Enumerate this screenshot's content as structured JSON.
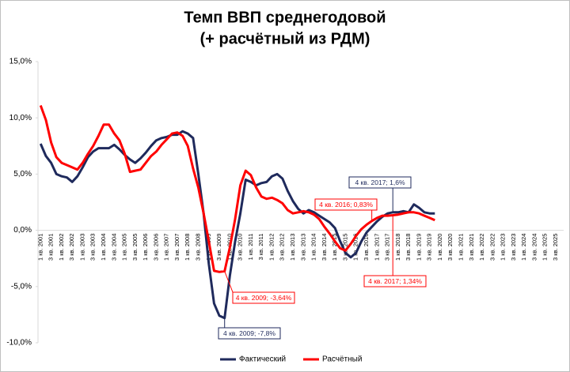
{
  "chart_data": {
    "type": "line",
    "title": "Темп ВВП среднегодовой",
    "subtitle": "(+ расчётный из РДМ)",
    "categories": [
      "1 кв. 2001",
      null,
      "3 кв. 2001",
      null,
      "1 кв. 2002",
      null,
      "3 кв. 2002",
      null,
      "1 кв. 2003",
      null,
      "3 кв. 2003",
      null,
      "1 кв. 2004",
      null,
      "3 кв. 2004",
      null,
      "1 кв. 2005",
      null,
      "3 кв. 2005",
      null,
      "1 кв. 2006",
      null,
      "3 кв. 2006",
      null,
      "1 кв. 2007",
      null,
      "3 кв. 2007",
      null,
      "1 кв. 2008",
      null,
      "3 кв. 2008",
      null,
      "1 кв. 2009",
      null,
      "3 кв. 2009",
      null,
      "1 кв. 2010",
      null,
      "3 кв. 2010",
      null,
      "1 кв. 2011",
      null,
      "3 кв. 2011",
      null,
      "1 кв. 2012",
      null,
      "3 кв. 2012",
      null,
      "1 кв. 2013",
      null,
      "3 кв. 2013",
      null,
      "1 кв. 2014",
      null,
      "3 кв. 2014",
      null,
      "1 кв. 2015",
      null,
      "3 кв. 2015",
      null,
      "1 кв. 2016",
      null,
      "3 кв. 2016",
      null,
      "1 кв. 2017",
      null,
      "3 кв. 2017",
      null,
      "1 кв. 2018",
      null,
      "3 кв. 2018",
      null,
      "1 кв. 2019",
      null,
      "3 кв. 2019",
      null,
      "1 кв. 2020",
      null,
      "3 кв. 2020",
      null,
      "1 кв. 2021",
      null,
      "3 кв. 2021",
      null,
      "1 кв. 2022",
      null,
      "3 кв. 2022",
      null,
      "1 кв. 2023",
      null,
      "3 кв. 2023",
      null,
      "1 кв. 2024",
      null,
      "3 кв. 2024",
      null,
      "1 кв. 2025",
      null,
      "3 кв. 2025",
      null
    ],
    "series": [
      {
        "name": "Фактический",
        "color": "#1f2a5c",
        "values": [
          7.7,
          6.6,
          6.0,
          5.0,
          4.8,
          4.7,
          4.3,
          4.8,
          5.6,
          6.5,
          7.0,
          7.3,
          7.3,
          7.3,
          7.6,
          7.2,
          6.7,
          6.3,
          6.0,
          6.4,
          6.9,
          7.5,
          8.0,
          8.2,
          8.3,
          8.5,
          8.5,
          8.8,
          8.6,
          8.2,
          5.0,
          1.5,
          -3.0,
          -6.5,
          -7.6,
          -7.8,
          -4.0,
          -1.0,
          1.5,
          4.5,
          4.3,
          4.0,
          4.2,
          4.3,
          4.8,
          5.0,
          4.6,
          3.5,
          2.6,
          1.9,
          1.5,
          1.8,
          1.6,
          1.3,
          1.0,
          0.7,
          0.2,
          -1.0,
          -2.0,
          -2.4,
          -2.0,
          -1.0,
          -0.2,
          0.3,
          0.8,
          1.2,
          1.5,
          1.6,
          1.6,
          1.7,
          1.6,
          2.3,
          2.0,
          1.6,
          1.5,
          1.5,
          null,
          null,
          null,
          null,
          null,
          null,
          null,
          null,
          null,
          null,
          null,
          null,
          null,
          null,
          null,
          null,
          null,
          null,
          null,
          null,
          null,
          null,
          null,
          null
        ]
      },
      {
        "name": "Расчётный",
        "color": "#ff0000",
        "values": [
          11.1,
          9.8,
          7.8,
          6.5,
          6.0,
          5.8,
          5.6,
          5.4,
          6.0,
          6.8,
          7.5,
          8.4,
          9.4,
          9.4,
          8.6,
          8.0,
          6.8,
          5.2,
          5.3,
          5.4,
          6.0,
          6.6,
          7.0,
          7.6,
          8.1,
          8.6,
          8.7,
          8.4,
          7.5,
          5.5,
          3.8,
          1.5,
          -1.0,
          -3.6,
          -3.7,
          -3.64,
          -1.5,
          1.0,
          4.0,
          5.3,
          4.9,
          3.8,
          3.0,
          2.8,
          2.9,
          2.7,
          2.4,
          1.8,
          1.5,
          1.6,
          1.7,
          1.6,
          1.4,
          1.0,
          0.3,
          -0.3,
          -1.0,
          -1.6,
          -1.8,
          -1.2,
          -0.5,
          0.1,
          0.5,
          0.83,
          1.1,
          1.3,
          1.3,
          1.34,
          1.4,
          1.5,
          1.6,
          1.6,
          1.5,
          1.3,
          1.1,
          0.9,
          null,
          null,
          null,
          null,
          null,
          null,
          null,
          null,
          null,
          null,
          null,
          null,
          null,
          null,
          null,
          null,
          null,
          null,
          null,
          null,
          null,
          null,
          null,
          null
        ]
      }
    ],
    "ylim": [
      -10,
      15
    ],
    "yticks": [
      {
        "value": -10,
        "label": "-10,0%"
      },
      {
        "value": -5,
        "label": "-5,0%"
      },
      {
        "value": 0,
        "label": "0,0%"
      },
      {
        "value": 5,
        "label": "5,0%"
      },
      {
        "value": 10,
        "label": "10,0%"
      },
      {
        "value": 15,
        "label": "15,0%"
      }
    ],
    "annotations": [
      "4 кв. 2017; 1,6%",
      "4 кв. 2016; 0,83%",
      "4 кв. 2009; -3,64%",
      "4 кв. 2009; -7,8%",
      "4 кв. 2017; 1,34%"
    ],
    "legend": "bottom"
  }
}
